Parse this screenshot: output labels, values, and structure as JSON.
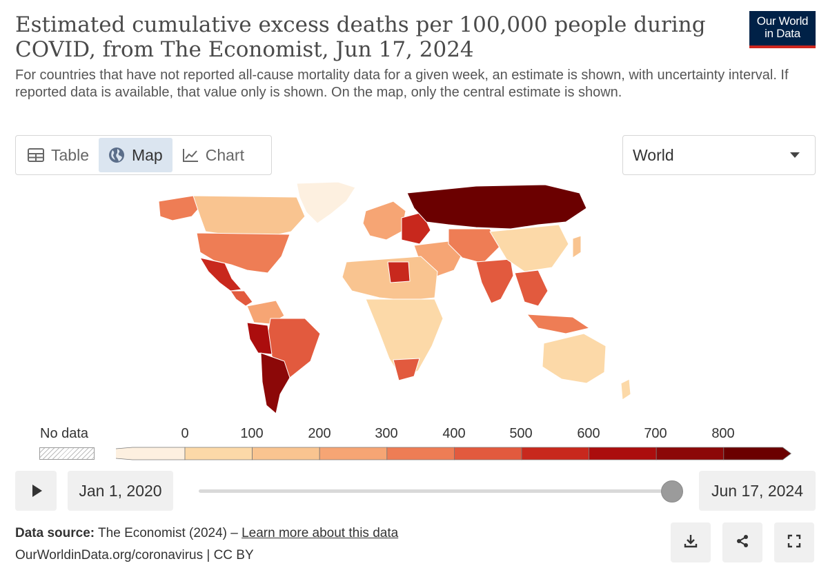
{
  "header": {
    "title": "Estimated cumulative excess deaths per 100,000 people during COVID, from The Economist, Jun 17, 2024",
    "subtitle": "For countries that have not reported all-cause mortality data for a given week, an estimate is shown, with uncertainty interval. If reported data is available, that value only is shown. On the map, only the central estimate is shown.",
    "logo_line1": "Our World",
    "logo_line2": "in Data"
  },
  "tabs": [
    {
      "label": "Table",
      "icon": "table-icon",
      "active": false
    },
    {
      "label": "Map",
      "icon": "globe-icon",
      "active": true
    },
    {
      "label": "Chart",
      "icon": "line-chart-icon",
      "active": false
    }
  ],
  "region_select": {
    "value": "World"
  },
  "legend": {
    "no_data_label": "No data",
    "ticks": [
      "0",
      "100",
      "200",
      "300",
      "400",
      "500",
      "600",
      "700",
      "800"
    ],
    "colors": [
      "#fdf0e0",
      "#fcd9a8",
      "#f9c490",
      "#f6a574",
      "#ee7d55",
      "#e25a3e",
      "#c8281d",
      "#ab0d0d",
      "#8c0808",
      "#6b0000"
    ]
  },
  "timeline": {
    "start_date": "Jan 1, 2020",
    "end_date": "Jun 17, 2024",
    "position": 1.0
  },
  "footer": {
    "source_label": "Data source:",
    "source_text": "The Economist (2024) –",
    "learn_more": "Learn more about this data",
    "url": "OurWorldinData.org/coronavirus | CC BY"
  },
  "actions": [
    {
      "icon": "download-icon"
    },
    {
      "icon": "share-icon"
    },
    {
      "icon": "fullscreen-icon"
    }
  ]
}
